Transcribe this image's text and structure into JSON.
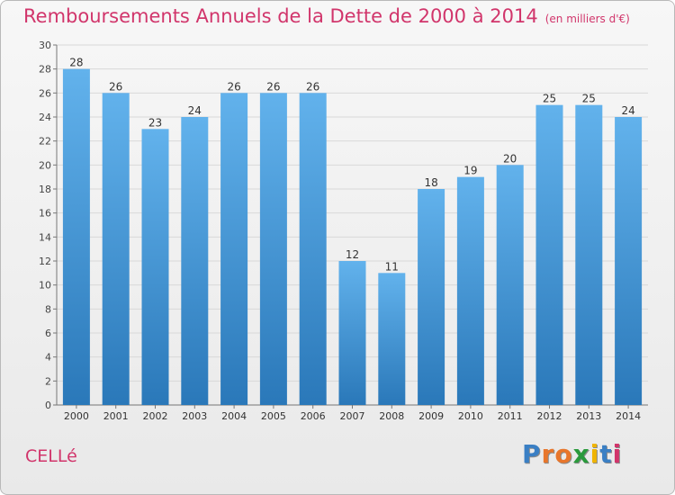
{
  "title": "Remboursements Annuels de la Dette de 2000 à 2014",
  "subtitle": "(en milliers d'€)",
  "commune": "CELLé",
  "brand": {
    "text": "Proxiti",
    "letter_colors": [
      "#3a7fc4",
      "#e8762b",
      "#e8762b",
      "#2a9a3c",
      "#f0b400",
      "#3a7fc4",
      "#d1356b"
    ]
  },
  "colors": {
    "bar_top": "#62b2ec",
    "bar_bottom": "#2a78b9",
    "title": "#d1356b",
    "grid": "#d8d8d8"
  },
  "chart_data": {
    "type": "bar",
    "categories": [
      "2000",
      "2001",
      "2002",
      "2003",
      "2004",
      "2005",
      "2006",
      "2007",
      "2008",
      "2009",
      "2010",
      "2011",
      "2012",
      "2013",
      "2014"
    ],
    "values": [
      28,
      26,
      23,
      24,
      26,
      26,
      26,
      12,
      11,
      18,
      19,
      20,
      25,
      25,
      24
    ],
    "data_labels": [
      "28",
      "26",
      "23",
      "24",
      "26",
      "26",
      "26",
      "12",
      "11",
      "18",
      "19",
      "20",
      "25",
      "25",
      "24"
    ],
    "y_ticks": [
      0,
      2,
      4,
      6,
      8,
      10,
      12,
      14,
      16,
      18,
      20,
      22,
      24,
      26,
      28,
      30
    ],
    "ylim": [
      0,
      30
    ],
    "grid": true,
    "title": "Remboursements Annuels de la Dette de 2000 à 2014",
    "xlabel": "",
    "ylabel": ""
  }
}
